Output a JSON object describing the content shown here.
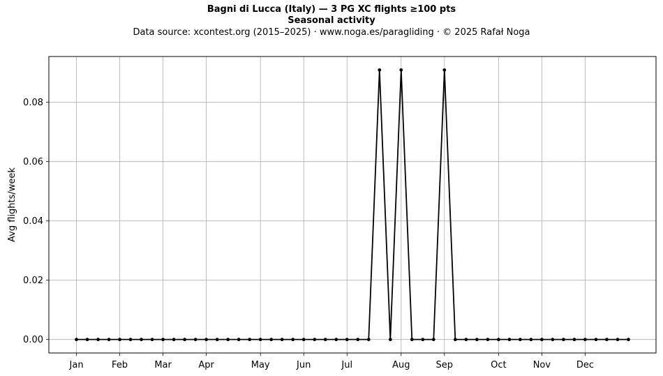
{
  "chart_data": {
    "type": "line",
    "title": "Bagni di Lucca (Italy)  —  3 PG XC flights ≥100 pts",
    "subtitle": "Seasonal activity",
    "source": "Data source: xcontest.org (2015–2025)  ·  www.noga.es/paragliding  ·  © 2025 Rafał Noga",
    "xlabel": "",
    "ylabel": "Avg flights/week",
    "x": [
      1,
      2,
      3,
      4,
      5,
      6,
      7,
      8,
      9,
      10,
      11,
      12,
      13,
      14,
      15,
      16,
      17,
      18,
      19,
      20,
      21,
      22,
      23,
      24,
      25,
      26,
      27,
      28,
      29,
      30,
      31,
      32,
      33,
      34,
      35,
      36,
      37,
      38,
      39,
      40,
      41,
      42,
      43,
      44,
      45,
      46,
      47,
      48,
      49,
      50,
      51,
      52
    ],
    "values": [
      0,
      0,
      0,
      0,
      0,
      0,
      0,
      0,
      0,
      0,
      0,
      0,
      0,
      0,
      0,
      0,
      0,
      0,
      0,
      0,
      0,
      0,
      0,
      0,
      0,
      0,
      0,
      0,
      0.0909,
      0,
      0.0909,
      0,
      0,
      0,
      0.0909,
      0,
      0,
      0,
      0,
      0,
      0,
      0,
      0,
      0,
      0,
      0,
      0,
      0,
      0,
      0,
      0,
      0
    ],
    "xticks": [
      {
        "label": "Jan",
        "x": 1
      },
      {
        "label": "Feb",
        "x": 5
      },
      {
        "label": "Mar",
        "x": 9
      },
      {
        "label": "Apr",
        "x": 13
      },
      {
        "label": "May",
        "x": 18
      },
      {
        "label": "Jun",
        "x": 22
      },
      {
        "label": "Jul",
        "x": 26
      },
      {
        "label": "Aug",
        "x": 31
      },
      {
        "label": "Sep",
        "x": 35
      },
      {
        "label": "Oct",
        "x": 40
      },
      {
        "label": "Nov",
        "x": 44
      },
      {
        "label": "Dec",
        "x": 48
      }
    ],
    "yticks": [
      0.0,
      0.02,
      0.04,
      0.06,
      0.08
    ],
    "ytick_labels": [
      "0.00",
      "0.02",
      "0.04",
      "0.06",
      "0.08"
    ],
    "xlim": [
      -1.55,
      54.55
    ],
    "ylim": [
      -0.00455,
      0.09545
    ],
    "grid": true,
    "line_color": "#000000",
    "grid_color": "#b0b0b0"
  }
}
